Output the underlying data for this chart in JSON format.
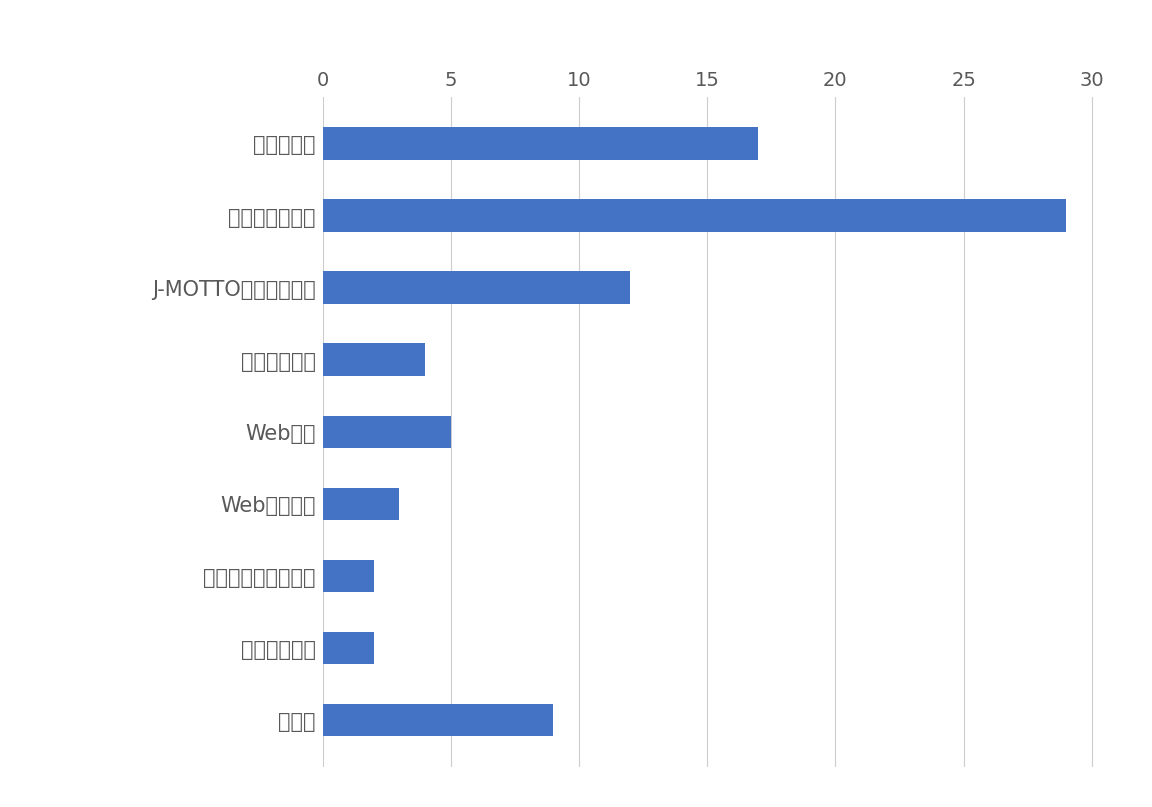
{
  "categories": [
    "サイト全体",
    "グループウェア",
    "J-MOTTOワークフロー",
    "ファイル共有",
    "Web勤怠",
    "Web給与明細",
    "ハッスルモンスター",
    "企業信用格付",
    "その他"
  ],
  "values": [
    17,
    29,
    12,
    4,
    5,
    3,
    2,
    2,
    9
  ],
  "bar_color": "#4472c4",
  "background_color": "#ffffff",
  "plot_bg_color": "#ffffff",
  "xlim": [
    0,
    31
  ],
  "xticks": [
    0,
    5,
    10,
    15,
    20,
    25,
    30
  ],
  "bar_height": 0.45,
  "grid_color": "#cccccc",
  "tick_label_fontsize": 14,
  "ylabel_fontsize": 15,
  "text_color": "#595959"
}
